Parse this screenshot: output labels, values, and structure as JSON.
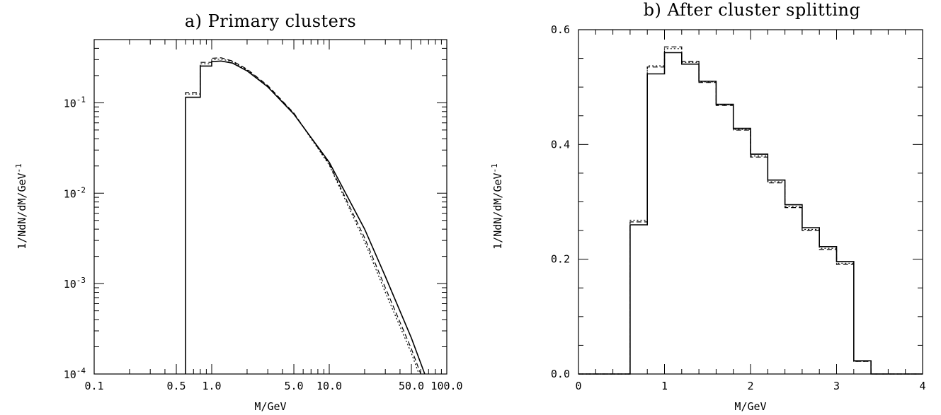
{
  "chart_data": [
    {
      "type": "line",
      "title": "a) Primary clusters",
      "xlabel": "M/GeV",
      "ylabel": "1/NdN/dM/GeV",
      "ylabel_sup": "-1",
      "x_scale": "log",
      "y_scale": "log",
      "xlim": [
        0.1,
        100.0
      ],
      "ylim": [
        0.0001,
        0.5
      ],
      "x_ticks": [
        {
          "v": 0.1,
          "label": "0.1"
        },
        {
          "v": 0.5,
          "label": "0.5"
        },
        {
          "v": 1.0,
          "label": "1.0"
        },
        {
          "v": 5.0,
          "label": "5.0"
        },
        {
          "v": 10.0,
          "label": "10.0"
        },
        {
          "v": 50.0,
          "label": "50.0"
        },
        {
          "v": 100.0,
          "label": "100.0"
        }
      ],
      "y_ticks": [
        {
          "v": 0.1,
          "base": "10",
          "exp": "-1"
        },
        {
          "v": 0.01,
          "base": "10",
          "exp": "-2"
        },
        {
          "v": 0.001,
          "base": "10",
          "exp": "-3"
        },
        {
          "v": 0.0001,
          "base": "10",
          "exp": "-4"
        }
      ],
      "series": [
        {
          "style": "solid",
          "points": [
            [
              0.6,
              0.0001
            ],
            [
              0.6,
              0.115
            ],
            [
              0.8,
              0.115
            ],
            [
              0.8,
              0.255
            ],
            [
              1.0,
              0.255
            ],
            [
              1.0,
              0.285
            ],
            [
              1.2,
              0.29
            ],
            [
              1.5,
              0.275
            ],
            [
              2.0,
              0.225
            ],
            [
              3.0,
              0.15
            ],
            [
              5.0,
              0.075
            ],
            [
              10.0,
              0.022
            ],
            [
              20.0,
              0.004
            ],
            [
              30.0,
              0.0012
            ],
            [
              50.0,
              0.00025
            ],
            [
              65.0,
              0.0001
            ]
          ]
        },
        {
          "style": "dashed",
          "points": [
            [
              0.6,
              0.0001
            ],
            [
              0.6,
              0.13
            ],
            [
              0.8,
              0.13
            ],
            [
              0.8,
              0.28
            ],
            [
              1.0,
              0.28
            ],
            [
              1.0,
              0.31
            ],
            [
              1.2,
              0.315
            ],
            [
              1.5,
              0.29
            ],
            [
              2.0,
              0.235
            ],
            [
              3.0,
              0.155
            ],
            [
              5.0,
              0.077
            ],
            [
              10.0,
              0.021
            ],
            [
              20.0,
              0.0032
            ],
            [
              30.0,
              0.0009
            ],
            [
              50.0,
              0.00019
            ],
            [
              60.0,
              0.0001
            ]
          ]
        },
        {
          "style": "dotted",
          "points": [
            [
              0.6,
              0.0001
            ],
            [
              0.6,
              0.125
            ],
            [
              0.8,
              0.125
            ],
            [
              0.8,
              0.27
            ],
            [
              1.0,
              0.27
            ],
            [
              1.0,
              0.3
            ],
            [
              1.2,
              0.305
            ],
            [
              1.5,
              0.285
            ],
            [
              2.0,
              0.23
            ],
            [
              3.0,
              0.152
            ],
            [
              5.0,
              0.076
            ],
            [
              10.0,
              0.0205
            ],
            [
              20.0,
              0.0029
            ],
            [
              30.0,
              0.0008
            ],
            [
              50.0,
              0.00017
            ],
            [
              58.0,
              0.0001
            ]
          ]
        }
      ]
    },
    {
      "type": "line",
      "title": "b) After cluster splitting",
      "xlabel": "M/GeV",
      "ylabel": "1/NdN/dM/GeV",
      "ylabel_sup": "-1",
      "x_scale": "linear",
      "y_scale": "linear",
      "xlim": [
        0,
        4
      ],
      "ylim": [
        0,
        0.6
      ],
      "x_ticks": [
        {
          "v": 0,
          "label": "0"
        },
        {
          "v": 1,
          "label": "1"
        },
        {
          "v": 2,
          "label": "2"
        },
        {
          "v": 3,
          "label": "3"
        },
        {
          "v": 4,
          "label": "4"
        }
      ],
      "y_ticks": [
        {
          "v": 0.0,
          "label": "0.0"
        },
        {
          "v": 0.2,
          "label": "0.2"
        },
        {
          "v": 0.4,
          "label": "0.4"
        },
        {
          "v": 0.6,
          "label": "0.6"
        }
      ],
      "bin_edges": [
        0,
        0.2,
        0.4,
        0.6,
        0.8,
        1.0,
        1.2,
        1.4,
        1.6,
        1.8,
        2.0,
        2.2,
        2.4,
        2.6,
        2.8,
        3.0,
        3.2,
        3.4,
        3.6,
        3.8,
        4.0
      ],
      "series": [
        {
          "style": "solid",
          "values": [
            0,
            0,
            0,
            0.26,
            0.523,
            0.56,
            0.54,
            0.51,
            0.47,
            0.428,
            0.383,
            0.338,
            0.295,
            0.255,
            0.222,
            0.196,
            0.023,
            0,
            0,
            0
          ]
        },
        {
          "style": "dashed",
          "values": [
            0,
            0,
            0,
            0.265,
            0.535,
            0.57,
            0.545,
            0.508,
            0.468,
            0.425,
            0.378,
            0.333,
            0.29,
            0.25,
            0.217,
            0.191,
            0.022,
            0,
            0,
            0
          ]
        },
        {
          "style": "dotted",
          "values": [
            0,
            0,
            0,
            0.268,
            0.537,
            0.567,
            0.543,
            0.509,
            0.469,
            0.426,
            0.38,
            0.335,
            0.292,
            0.252,
            0.219,
            0.193,
            0.022,
            0,
            0,
            0
          ]
        }
      ]
    }
  ]
}
